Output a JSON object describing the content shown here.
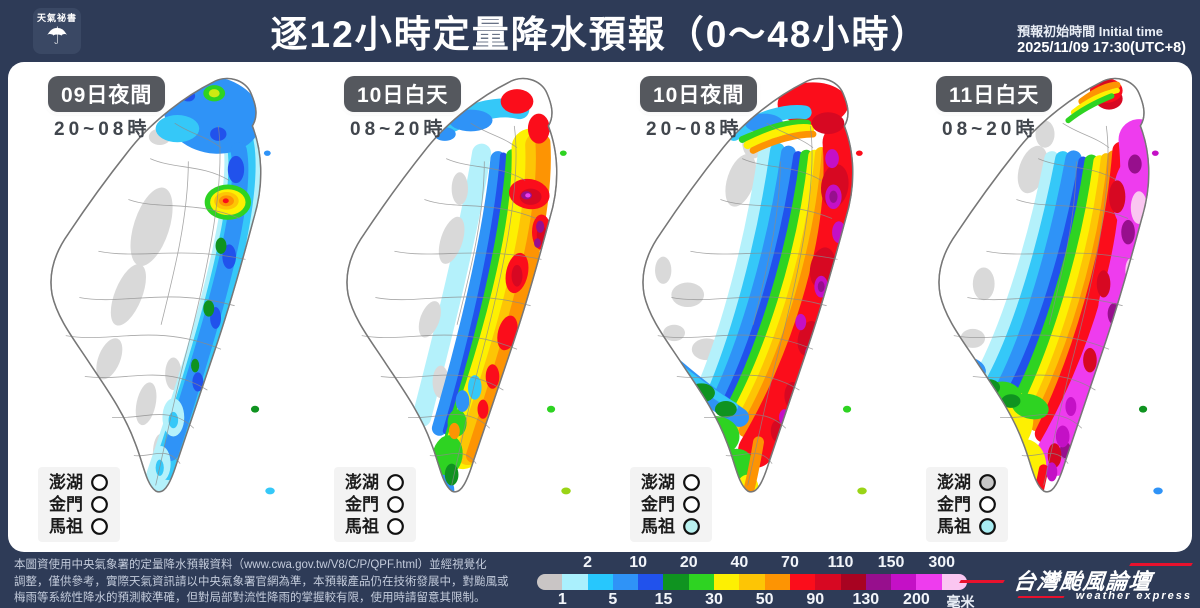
{
  "header": {
    "logo_text": "天氣祕書",
    "umbrella_icon": "☂",
    "title": "逐12小時定量降水預報（0～48小時）",
    "init_label": "預報初始時間 Initial time",
    "init_value": "2025/11/09  17:30(UTC+8)"
  },
  "island_labels": [
    "澎湖",
    "金門",
    "馬祖"
  ],
  "panels": [
    {
      "badge": "09日夜間",
      "time": "20~08時",
      "island_fills": [
        "#ffffff",
        "#ffffff",
        "#ffffff"
      ]
    },
    {
      "badge": "10日白天",
      "time": "08~20時",
      "island_fills": [
        "#ffffff",
        "#ffffff",
        "#ffffff"
      ]
    },
    {
      "badge": "10日夜間",
      "time": "20~08時",
      "island_fills": [
        "#ffffff",
        "#ffffff",
        "#b9f1ef"
      ]
    },
    {
      "badge": "11日白天",
      "time": "08~20時",
      "island_fills": [
        "#c7c7c7",
        "#ffffff",
        "#a8ecf2"
      ]
    }
  ],
  "legend": {
    "unit": "毫米",
    "top_values": [
      "2",
      "10",
      "20",
      "40",
      "70",
      "110",
      "150",
      "300"
    ],
    "bottom_values": [
      "1",
      "5",
      "15",
      "30",
      "50",
      "90",
      "130",
      "200"
    ],
    "colors": [
      "#c9c5c5",
      "#aaf0fd",
      "#27c7fd",
      "#2f93f7",
      "#2152ec",
      "#0f9320",
      "#2ed322",
      "#fdf002",
      "#fdc505",
      "#fd9403",
      "#fb0d1b",
      "#d70822",
      "#a80321",
      "#970f8d",
      "#c410c6",
      "#ee3cee",
      "#fac6f1"
    ]
  },
  "footer": {
    "disclaimer_lines": [
      "本圖資使用中央氣象署的定量降水預報資料（www.cwa.gov.tw/V8/C/P/QPF.html）並經視覺化",
      "調整，僅供參考，實際天氣資訊請以中央氣象署官網為準，本預報產品仍在技術發展中，對颱風或",
      "梅雨等系統性降水的預測較準確，但對局部對流性降雨的掌握較有限，使用時請留意其限制。"
    ],
    "brand_name": "台灣颱風論壇",
    "brand_tagline": "weather express",
    "brand_accent": "#e8112d"
  }
}
